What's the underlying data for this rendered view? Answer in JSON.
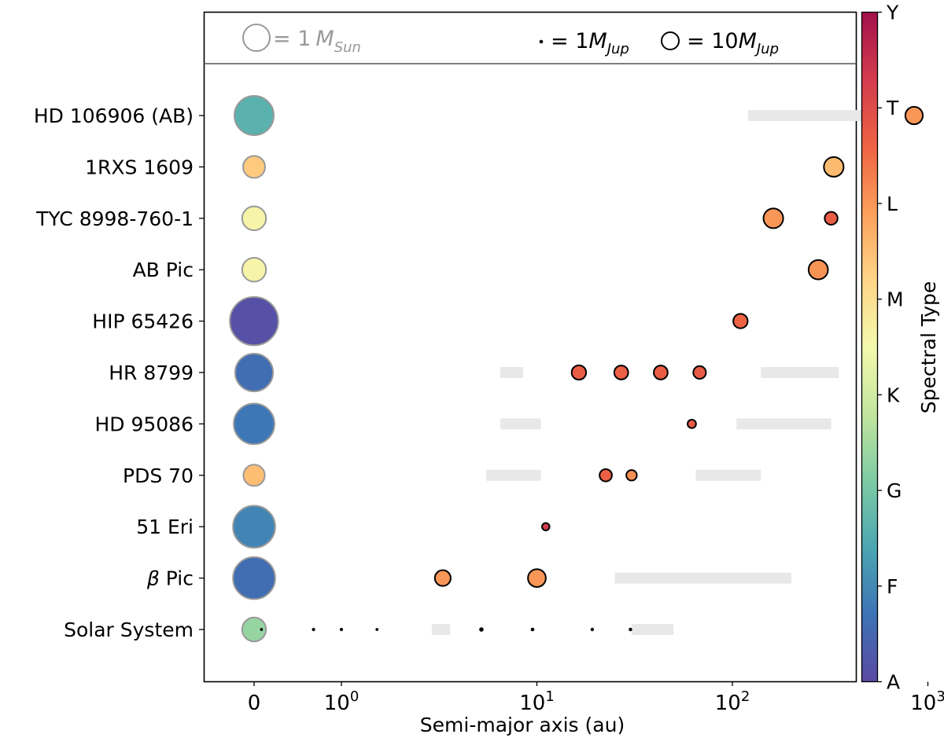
{
  "chart_data": {
    "type": "scatter",
    "xlabel": "Semi-major axis (au)",
    "x_scale": "log",
    "x_ticks": [
      {
        "label": "0",
        "value": 0
      },
      {
        "base": "10",
        "exp": "0",
        "value": 1
      },
      {
        "base": "10",
        "exp": "1",
        "value": 10
      },
      {
        "base": "10",
        "exp": "2",
        "value": 100
      },
      {
        "base": "10",
        "exp": "3",
        "value": 1000
      }
    ],
    "legend": {
      "star_eq": "= 1",
      "star_sub": "Sun",
      "jup_small_eq": "= 1",
      "jup_big_eq": "= 10",
      "jup_sub": "Jup",
      "m_symbol": "M",
      "color_star": "#999999",
      "color_planet": "#000000"
    },
    "colorbar": {
      "label": "Spectral Type",
      "ticks": [
        "A",
        "F",
        "G",
        "K",
        "M",
        "L",
        "T",
        "Y"
      ],
      "colors": [
        "#5a4aa3",
        "#3d73b6",
        "#4ca6b1",
        "#7dcba4",
        "#c2e59e",
        "#f4f9ad",
        "#fed587",
        "#fba05b",
        "#ee6344",
        "#d33c4d",
        "#a3114b"
      ]
    },
    "systems": [
      {
        "name": "HD 106906 (AB)",
        "star_mass": 2.7,
        "star_spt": 1.6,
        "planets": [
          {
            "a": 850,
            "mass": 11,
            "spt": 5.0
          }
        ],
        "disks": [
          [
            120,
            550
          ]
        ]
      },
      {
        "name": "1RXS 1609",
        "star_mass": 0.85,
        "star_spt": 4.35,
        "planets": [
          {
            "a": 330,
            "mass": 14,
            "spt": 4.55
          }
        ],
        "disks": []
      },
      {
        "name": "TYC 8998-760-1",
        "star_mass": 1.0,
        "star_spt": 3.6,
        "planets": [
          {
            "a": 162,
            "mass": 14,
            "spt": 5.0
          },
          {
            "a": 320,
            "mass": 6,
            "spt": 5.7
          }
        ],
        "disks": []
      },
      {
        "name": "AB Pic",
        "star_mass": 1.0,
        "star_spt": 3.6,
        "planets": [
          {
            "a": 275,
            "mass": 13.5,
            "spt": 5.05
          }
        ],
        "disks": []
      },
      {
        "name": "HIP 65426",
        "star_mass": 4.1,
        "star_spt": 0.1,
        "planets": [
          {
            "a": 110,
            "mass": 7.5,
            "spt": 5.6
          }
        ],
        "disks": []
      },
      {
        "name": "HR 8799",
        "star_mass": 2.5,
        "star_spt": 0.6,
        "planets": [
          {
            "a": 16.4,
            "mass": 7.5,
            "spt": 5.7
          },
          {
            "a": 27,
            "mass": 7,
            "spt": 5.65
          },
          {
            "a": 43,
            "mass": 7,
            "spt": 5.7
          },
          {
            "a": 68,
            "mass": 5.8,
            "spt": 5.75
          }
        ],
        "disks": [
          [
            6.5,
            8.5
          ],
          [
            140,
            350
          ]
        ]
      },
      {
        "name": "HD 95086",
        "star_mass": 2.9,
        "star_spt": 0.75,
        "planets": [
          {
            "a": 62,
            "mass": 2.6,
            "spt": 5.75
          }
        ],
        "disks": [
          [
            6.5,
            10.5
          ],
          [
            105,
            320
          ]
        ]
      },
      {
        "name": "PDS 70",
        "star_mass": 0.8,
        "star_spt": 4.5,
        "planets": [
          {
            "a": 22.5,
            "mass": 5.5,
            "spt": 5.65
          },
          {
            "a": 30.5,
            "mass": 4,
            "spt": 5.1
          }
        ],
        "disks": [
          [
            5.5,
            10.5
          ],
          [
            65,
            140
          ]
        ]
      },
      {
        "name": "51 Eri",
        "star_mass": 3.1,
        "star_spt": 0.95,
        "planets": [
          {
            "a": 11.1,
            "mass": 2,
            "spt": 6.3
          }
        ],
        "disks": []
      },
      {
        "name": "β Pic",
        "star_mass": 3.1,
        "star_spt": 0.6,
        "planets": [
          {
            "a": 3.3,
            "mass": 9,
            "spt": 5.0
          },
          {
            "a": 10.0,
            "mass": 11.5,
            "spt": 5.0
          }
        ],
        "disks": [
          [
            25,
            200
          ]
        ]
      },
      {
        "name": "Solar System",
        "star_mass": 1.0,
        "star_spt": 2.35,
        "planets": [
          {
            "a": 0.39,
            "mass": 0.7
          },
          {
            "a": 0.72,
            "mass": 0.9
          },
          {
            "a": 1.0,
            "mass": 0.9
          },
          {
            "a": 1.52,
            "mass": 0.7
          },
          {
            "a": 5.2,
            "mass": 1.6
          },
          {
            "a": 9.5,
            "mass": 1.1
          },
          {
            "a": 19.2,
            "mass": 1.0
          },
          {
            "a": 30.1,
            "mass": 1.0
          }
        ],
        "disks": [
          [
            2.9,
            3.6
          ],
          [
            30.5,
            50
          ]
        ]
      }
    ]
  }
}
